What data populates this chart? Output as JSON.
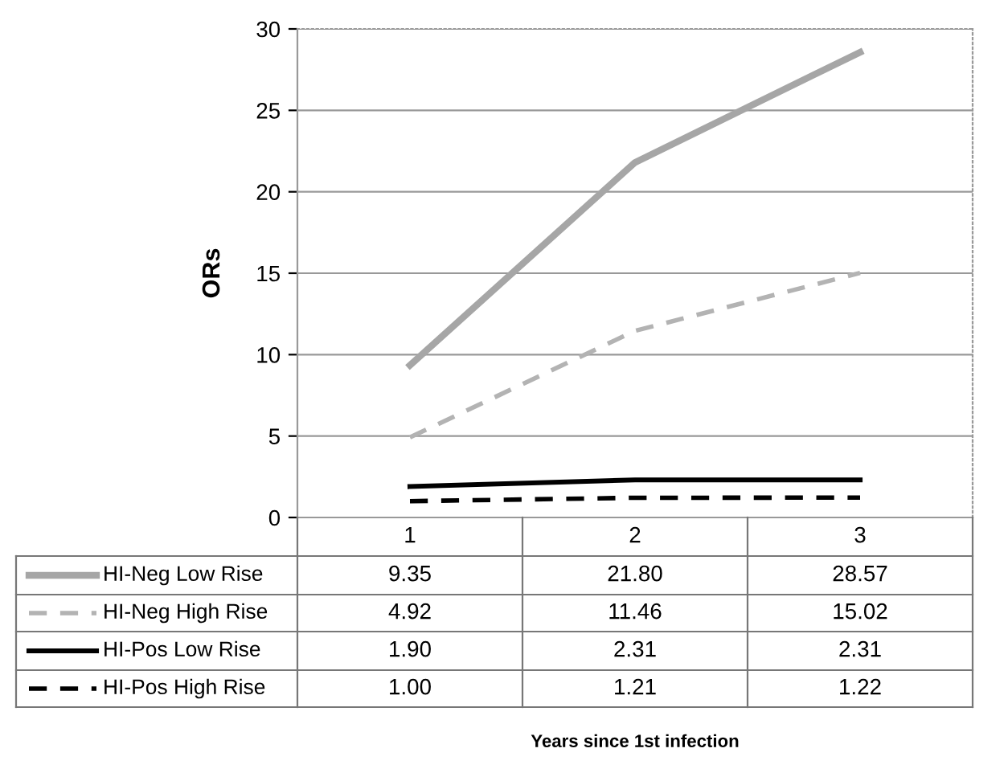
{
  "chart_data": {
    "type": "line",
    "ylabel": "ORs",
    "annotations": [
      "Years since 1st infection"
    ],
    "categories": [
      "1",
      "2",
      "3"
    ],
    "ylim": [
      0,
      30
    ],
    "yticks": [
      0,
      5,
      10,
      15,
      20,
      25,
      30
    ],
    "grid": "y",
    "legend": "bottom",
    "series": [
      {
        "name": "HI-Neg Low Rise",
        "color": "#a6a6a6",
        "line_style": "solid",
        "values": [
          9.35,
          21.8,
          28.57
        ],
        "value_labels": [
          "9.35",
          "21.80",
          "28.57"
        ]
      },
      {
        "name": "HI-Neg High Rise",
        "color": "#b3b3b3",
        "line_style": "dashed",
        "values": [
          4.92,
          11.46,
          15.02
        ],
        "value_labels": [
          "4.92",
          "11.46",
          "15.02"
        ]
      },
      {
        "name": "HI-Pos Low Rise",
        "color": "#000000",
        "line_style": "solid",
        "values": [
          1.9,
          2.31,
          2.31
        ],
        "value_labels": [
          "1.90",
          "2.31",
          "2.31"
        ]
      },
      {
        "name": "HI-Pos High Rise",
        "color": "#000000",
        "line_style": "dashed",
        "values": [
          1.0,
          1.21,
          1.22
        ],
        "value_labels": [
          "1.00",
          "1.21",
          "1.22"
        ]
      }
    ]
  }
}
